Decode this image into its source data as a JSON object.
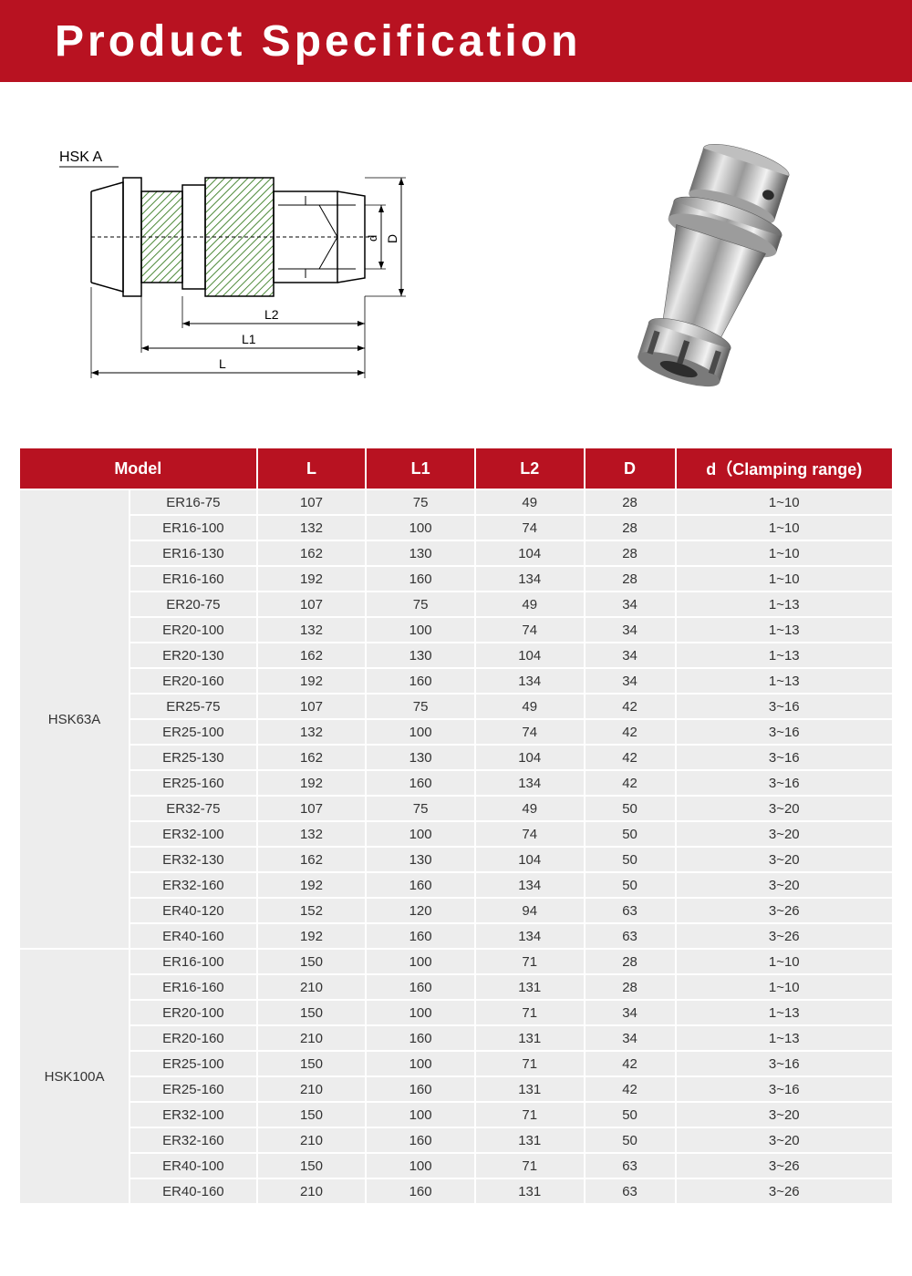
{
  "header": {
    "title": "Product  Specification"
  },
  "diagram": {
    "label_hsk": "HSK A",
    "dim_L": "L",
    "dim_L1": "L1",
    "dim_L2": "L2",
    "dim_d": "d",
    "dim_D": "D",
    "line_color": "#1a1a1a",
    "hatch_color": "#4e8a3a"
  },
  "table": {
    "headers": {
      "model": "Model",
      "L": "L",
      "L1": "L1",
      "L2": "L2",
      "D": "D",
      "range": "d（Clamping range)"
    },
    "header_bg": "#b81221",
    "header_fg": "#ffffff",
    "cell_bg": "#ededed",
    "groups": [
      {
        "name": "HSK63A",
        "rows": [
          {
            "m": "ER16-75",
            "L": "107",
            "L1": "75",
            "L2": "49",
            "D": "28",
            "r": "1~10"
          },
          {
            "m": "ER16-100",
            "L": "132",
            "L1": "100",
            "L2": "74",
            "D": "28",
            "r": "1~10"
          },
          {
            "m": "ER16-130",
            "L": "162",
            "L1": "130",
            "L2": "104",
            "D": "28",
            "r": "1~10"
          },
          {
            "m": "ER16-160",
            "L": "192",
            "L1": "160",
            "L2": "134",
            "D": "28",
            "r": "1~10"
          },
          {
            "m": "ER20-75",
            "L": "107",
            "L1": "75",
            "L2": "49",
            "D": "34",
            "r": "1~13"
          },
          {
            "m": "ER20-100",
            "L": "132",
            "L1": "100",
            "L2": "74",
            "D": "34",
            "r": "1~13"
          },
          {
            "m": "ER20-130",
            "L": "162",
            "L1": "130",
            "L2": "104",
            "D": "34",
            "r": "1~13"
          },
          {
            "m": "ER20-160",
            "L": "192",
            "L1": "160",
            "L2": "134",
            "D": "34",
            "r": "1~13"
          },
          {
            "m": "ER25-75",
            "L": "107",
            "L1": "75",
            "L2": "49",
            "D": "42",
            "r": "3~16"
          },
          {
            "m": "ER25-100",
            "L": "132",
            "L1": "100",
            "L2": "74",
            "D": "42",
            "r": "3~16"
          },
          {
            "m": "ER25-130",
            "L": "162",
            "L1": "130",
            "L2": "104",
            "D": "42",
            "r": "3~16"
          },
          {
            "m": "ER25-160",
            "L": "192",
            "L1": "160",
            "L2": "134",
            "D": "42",
            "r": "3~16"
          },
          {
            "m": "ER32-75",
            "L": "107",
            "L1": "75",
            "L2": "49",
            "D": "50",
            "r": "3~20"
          },
          {
            "m": "ER32-100",
            "L": "132",
            "L1": "100",
            "L2": "74",
            "D": "50",
            "r": "3~20"
          },
          {
            "m": "ER32-130",
            "L": "162",
            "L1": "130",
            "L2": "104",
            "D": "50",
            "r": "3~20"
          },
          {
            "m": "ER32-160",
            "L": "192",
            "L1": "160",
            "L2": "134",
            "D": "50",
            "r": "3~20"
          },
          {
            "m": "ER40-120",
            "L": "152",
            "L1": "120",
            "L2": "94",
            "D": "63",
            "r": "3~26"
          },
          {
            "m": "ER40-160",
            "L": "192",
            "L1": "160",
            "L2": "134",
            "D": "63",
            "r": "3~26"
          }
        ]
      },
      {
        "name": "HSK100A",
        "rows": [
          {
            "m": "ER16-100",
            "L": "150",
            "L1": "100",
            "L2": "71",
            "D": "28",
            "r": "1~10"
          },
          {
            "m": "ER16-160",
            "L": "210",
            "L1": "160",
            "L2": "131",
            "D": "28",
            "r": "1~10"
          },
          {
            "m": "ER20-100",
            "L": "150",
            "L1": "100",
            "L2": "71",
            "D": "34",
            "r": "1~13"
          },
          {
            "m": "ER20-160",
            "L": "210",
            "L1": "160",
            "L2": "131",
            "D": "34",
            "r": "1~13"
          },
          {
            "m": "ER25-100",
            "L": "150",
            "L1": "100",
            "L2": "71",
            "D": "42",
            "r": "3~16"
          },
          {
            "m": "ER25-160",
            "L": "210",
            "L1": "160",
            "L2": "131",
            "D": "42",
            "r": "3~16"
          },
          {
            "m": "ER32-100",
            "L": "150",
            "L1": "100",
            "L2": "71",
            "D": "50",
            "r": "3~20"
          },
          {
            "m": "ER32-160",
            "L": "210",
            "L1": "160",
            "L2": "131",
            "D": "50",
            "r": "3~20"
          },
          {
            "m": "ER40-100",
            "L": "150",
            "L1": "100",
            "L2": "71",
            "D": "63",
            "r": "3~26"
          },
          {
            "m": "ER40-160",
            "L": "210",
            "L1": "160",
            "L2": "131",
            "D": "63",
            "r": "3~26"
          }
        ]
      }
    ]
  }
}
